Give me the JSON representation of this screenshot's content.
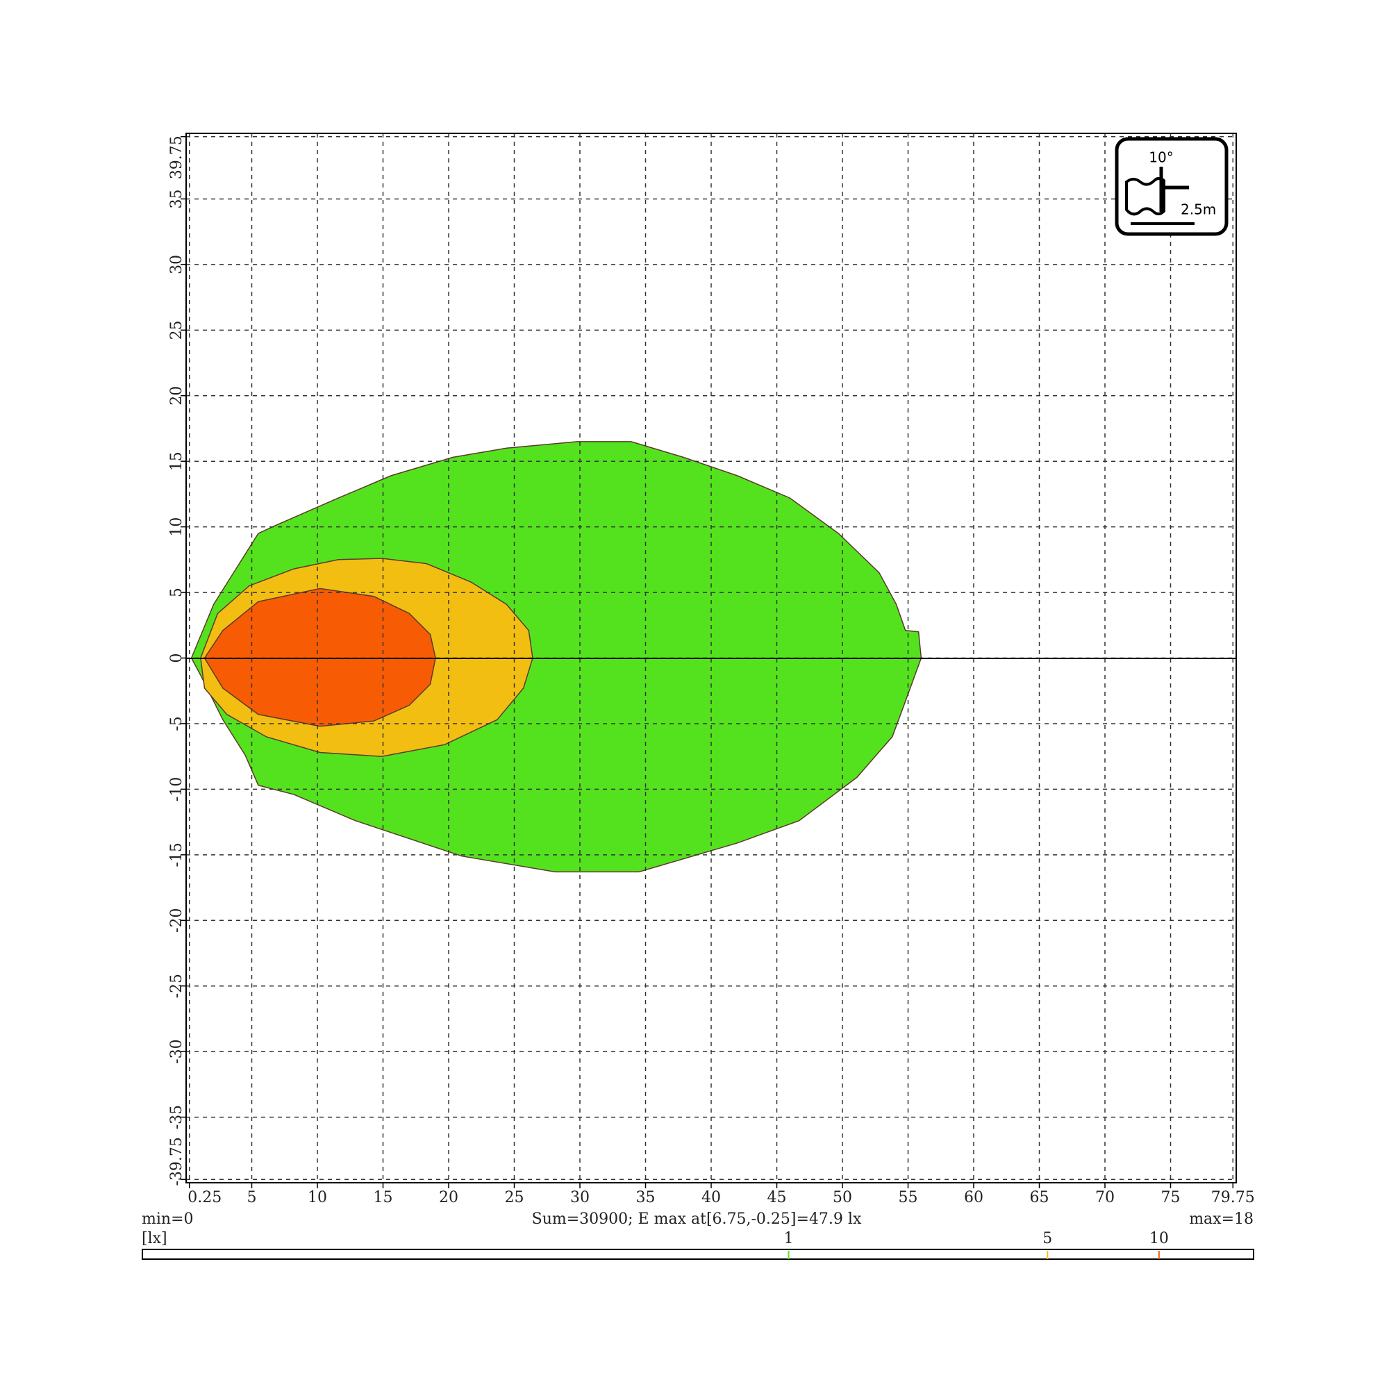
{
  "chart_data": {
    "type": "contour",
    "xlim": [
      0,
      80
    ],
    "ylim": [
      -40,
      40
    ],
    "xticks": [
      0.25,
      5,
      10,
      15,
      20,
      25,
      30,
      35,
      40,
      45,
      50,
      55,
      60,
      65,
      70,
      75,
      79.75
    ],
    "yticks": [
      -39.75,
      -35,
      -30,
      -25,
      -20,
      -15,
      -10,
      -5,
      0,
      5,
      10,
      15,
      20,
      25,
      30,
      35,
      39.75
    ],
    "grid": true,
    "contours": [
      {
        "level": 1,
        "color": "#55e21e",
        "x": [
          0.4,
          2.1,
          3.8,
          5.5,
          6.8,
          11.6,
          15.6,
          20.3,
          24.4,
          29.8,
          33.9,
          37.9,
          42,
          46,
          49.7,
          52.8,
          54.1,
          54.8,
          55.8,
          56,
          54.8,
          53.8,
          51.1,
          46.7,
          42,
          34.5,
          28.1,
          21,
          12.9,
          8.2,
          5.5,
          4.5,
          2.8,
          1.1
        ],
        "y": [
          0,
          4.1,
          6.8,
          9.5,
          10.1,
          12.2,
          13.9,
          15.3,
          16,
          16.5,
          16.5,
          15.3,
          13.9,
          12.2,
          9.5,
          6.5,
          4.1,
          2.1,
          2,
          0,
          -3.3,
          -6,
          -9.1,
          -12.4,
          -14.1,
          -16.3,
          -16.3,
          -15.1,
          -12.4,
          -10.4,
          -9.7,
          -7.4,
          -4.7,
          -1.3
        ]
      },
      {
        "level": 5,
        "color": "#f2be12",
        "x": [
          1.1,
          2.4,
          4.8,
          8.2,
          11.6,
          14.9,
          18.3,
          21.7,
          24.4,
          26.1,
          26.4,
          25.7,
          23.7,
          19.7,
          14.9,
          10.2,
          6.1,
          3.1,
          1.4
        ],
        "y": [
          0,
          3.4,
          5.5,
          6.8,
          7.5,
          7.6,
          7.2,
          5.8,
          4.1,
          2.1,
          0,
          -2.3,
          -4.7,
          -6.6,
          -7.5,
          -7.2,
          -6,
          -4.3,
          -2.3
        ]
      },
      {
        "level": 10,
        "color": "#f75c04",
        "x": [
          1.4,
          2.8,
          5.5,
          10.2,
          14.3,
          17,
          18.6,
          19,
          18.6,
          17,
          14.3,
          10.2,
          5.5,
          2.8
        ],
        "y": [
          0,
          2.1,
          4.3,
          5.3,
          4.7,
          3.4,
          1.8,
          0,
          -2,
          -3.6,
          -4.8,
          -5.2,
          -4.3,
          -2.3
        ]
      }
    ],
    "min_text": "min=0",
    "summary": "Sum=30900; E max at[6.75,-0.25]=47.9 lx",
    "max_text": "max=18",
    "colorbar": {
      "label": "[lx]",
      "log": true,
      "lim": [
        0.018,
        18
      ]
    },
    "icon": {
      "angle": "10°",
      "height": "2.5m"
    }
  }
}
